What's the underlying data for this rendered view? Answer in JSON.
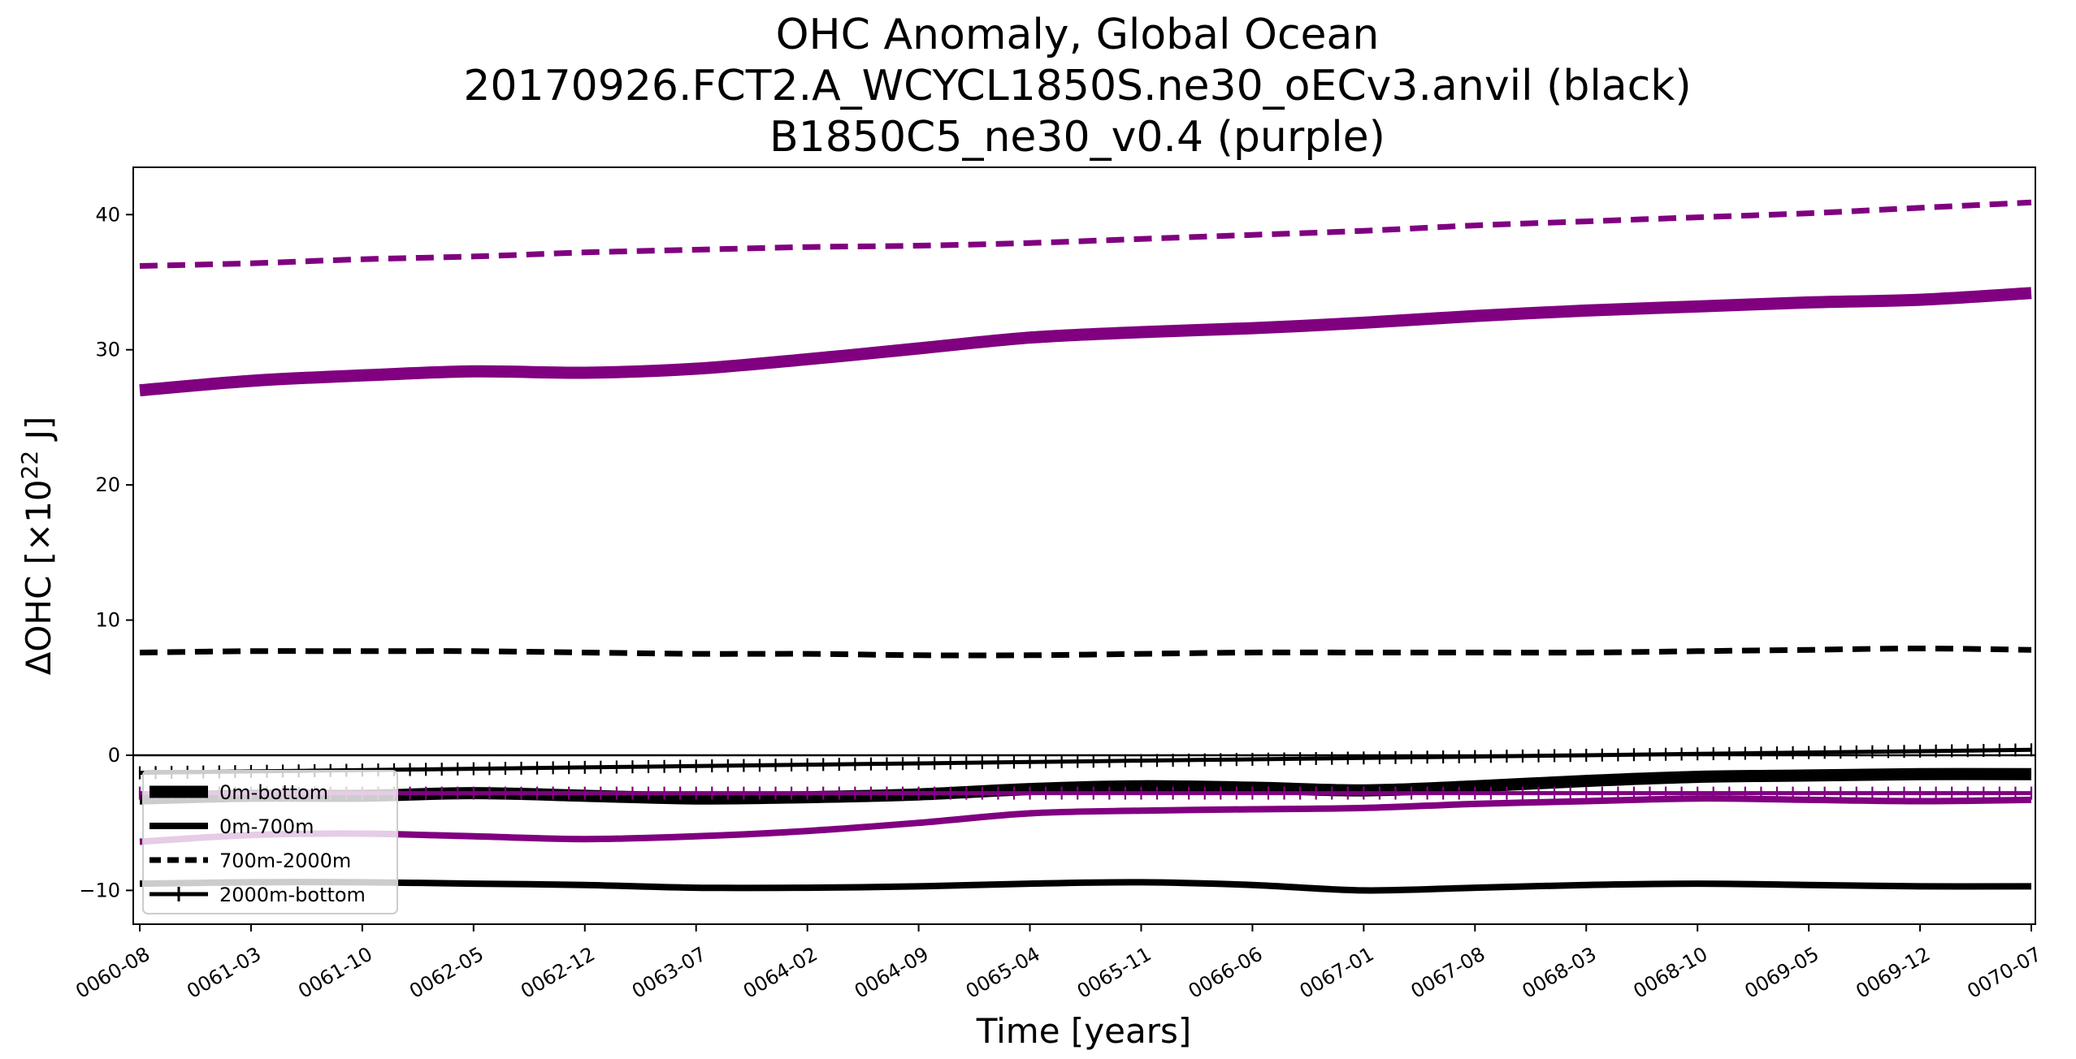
{
  "chart_data": {
    "type": "line",
    "title": [
      "OHC Anomaly, Global Ocean",
      "20170926.FCT2.A_WCYCL1850S.ne30_oECv3.anvil (black)",
      "B1850C5_ne30_v0.4 (purple)"
    ],
    "xlabel": "Time [years]",
    "ylabel_parts": {
      "prefix": "ΔOHC [×10",
      "sup": "22",
      "suffix": " J]"
    },
    "x_ticks": [
      "0060-08",
      "0061-03",
      "0061-10",
      "0062-05",
      "0062-12",
      "0063-07",
      "0064-02",
      "0064-09",
      "0065-04",
      "0065-11",
      "0066-06",
      "0067-01",
      "0067-08",
      "0068-03",
      "0068-10",
      "0069-05",
      "0069-12",
      "0070-07"
    ],
    "x_range": [
      "0060-08",
      "0070-07"
    ],
    "y_ticks": [
      -10,
      0,
      10,
      20,
      30,
      40
    ],
    "y_tick_labels": [
      "−10",
      "0",
      "10",
      "20",
      "30",
      "40"
    ],
    "ylim": [
      -12.5,
      43.5
    ],
    "zero_line": true,
    "grid": false,
    "legend_position": "lower-left",
    "legend": [
      {
        "label": "0m-bottom",
        "style": "thick"
      },
      {
        "label": "0m-700m",
        "style": "solid"
      },
      {
        "label": "700m-2000m",
        "style": "dashed"
      },
      {
        "label": "2000m-bottom",
        "style": "plus"
      }
    ],
    "colors": {
      "run1": "#000000",
      "run2": "#800080"
    },
    "series": [
      {
        "run": "black",
        "legend": "0m-bottom",
        "style": "thick",
        "color": "#000000",
        "x": [
          "0060-08",
          "0061-03",
          "0061-10",
          "0062-05",
          "0062-12",
          "0063-07",
          "0064-02",
          "0064-09",
          "0065-04",
          "0065-11",
          "0066-06",
          "0067-01",
          "0067-08",
          "0068-03",
          "0068-10",
          "0069-05",
          "0069-12",
          "0070-07"
        ],
        "y": [
          -3.2,
          -3.0,
          -3.0,
          -2.8,
          -3.0,
          -3.2,
          -3.1,
          -2.9,
          -2.5,
          -2.3,
          -2.4,
          -2.6,
          -2.3,
          -1.9,
          -1.6,
          -1.5,
          -1.4,
          -1.4
        ]
      },
      {
        "run": "black",
        "legend": "0m-700m",
        "style": "solid",
        "color": "#000000",
        "x": [
          "0060-08",
          "0061-03",
          "0061-10",
          "0062-05",
          "0062-12",
          "0063-07",
          "0064-02",
          "0064-09",
          "0065-04",
          "0065-11",
          "0066-06",
          "0067-01",
          "0067-08",
          "0068-03",
          "0068-10",
          "0069-05",
          "0069-12",
          "0070-07"
        ],
        "y": [
          -9.5,
          -9.4,
          -9.4,
          -9.5,
          -9.6,
          -9.8,
          -9.8,
          -9.7,
          -9.5,
          -9.4,
          -9.6,
          -10.0,
          -9.8,
          -9.6,
          -9.5,
          -9.6,
          -9.7,
          -9.7
        ]
      },
      {
        "run": "black",
        "legend": "700m-2000m",
        "style": "dashed",
        "color": "#000000",
        "x": [
          "0060-08",
          "0061-03",
          "0061-10",
          "0062-05",
          "0062-12",
          "0063-07",
          "0064-02",
          "0064-09",
          "0065-04",
          "0065-11",
          "0066-06",
          "0067-01",
          "0067-08",
          "0068-03",
          "0068-10",
          "0069-05",
          "0069-12",
          "0070-07"
        ],
        "y": [
          7.6,
          7.7,
          7.7,
          7.7,
          7.6,
          7.5,
          7.5,
          7.4,
          7.4,
          7.5,
          7.6,
          7.6,
          7.6,
          7.6,
          7.7,
          7.8,
          7.9,
          7.8
        ]
      },
      {
        "run": "black",
        "legend": "2000m-bottom",
        "style": "plus",
        "color": "#000000",
        "x": [
          "0060-08",
          "0061-03",
          "0061-10",
          "0062-05",
          "0062-12",
          "0063-07",
          "0064-02",
          "0064-09",
          "0065-04",
          "0065-11",
          "0066-06",
          "0067-01",
          "0067-08",
          "0068-03",
          "0068-10",
          "0069-05",
          "0069-12",
          "0070-07"
        ],
        "y": [
          -1.3,
          -1.2,
          -1.1,
          -1.0,
          -0.9,
          -0.8,
          -0.7,
          -0.6,
          -0.5,
          -0.4,
          -0.3,
          -0.2,
          -0.1,
          0.0,
          0.1,
          0.2,
          0.3,
          0.4
        ]
      },
      {
        "run": "purple",
        "legend": "0m-bottom",
        "style": "thick",
        "color": "#800080",
        "x": [
          "0060-08",
          "0061-03",
          "0061-10",
          "0062-05",
          "0062-12",
          "0063-07",
          "0064-02",
          "0064-09",
          "0065-04",
          "0065-11",
          "0066-06",
          "0067-01",
          "0067-08",
          "0068-03",
          "0068-10",
          "0069-05",
          "0069-12",
          "0070-07"
        ],
        "y": [
          27.0,
          27.7,
          28.1,
          28.4,
          28.3,
          28.6,
          29.3,
          30.1,
          30.9,
          31.3,
          31.6,
          32.0,
          32.5,
          32.9,
          33.2,
          33.5,
          33.7,
          34.2
        ]
      },
      {
        "run": "purple",
        "legend": "0m-700m",
        "style": "solid",
        "color": "#800080",
        "x": [
          "0060-08",
          "0061-03",
          "0061-10",
          "0062-05",
          "0062-12",
          "0063-07",
          "0064-02",
          "0064-09",
          "0065-04",
          "0065-11",
          "0066-06",
          "0067-01",
          "0067-08",
          "0068-03",
          "0068-10",
          "0069-05",
          "0069-12",
          "0070-07"
        ],
        "y": [
          -6.4,
          -5.9,
          -5.8,
          -6.0,
          -6.2,
          -6.0,
          -5.6,
          -5.0,
          -4.3,
          -4.1,
          -4.0,
          -3.9,
          -3.6,
          -3.4,
          -3.2,
          -3.3,
          -3.4,
          -3.3
        ]
      },
      {
        "run": "purple",
        "legend": "700m-2000m",
        "style": "dashed",
        "color": "#800080",
        "x": [
          "0060-08",
          "0061-03",
          "0061-10",
          "0062-05",
          "0062-12",
          "0063-07",
          "0064-02",
          "0064-09",
          "0065-04",
          "0065-11",
          "0066-06",
          "0067-01",
          "0067-08",
          "0068-03",
          "0068-10",
          "0069-05",
          "0069-12",
          "0070-07"
        ],
        "y": [
          36.2,
          36.4,
          36.7,
          36.9,
          37.2,
          37.4,
          37.6,
          37.7,
          37.9,
          38.2,
          38.5,
          38.8,
          39.2,
          39.5,
          39.8,
          40.1,
          40.5,
          40.9
        ]
      },
      {
        "run": "purple",
        "legend": "2000m-bottom",
        "style": "plus",
        "color": "#800080",
        "x": [
          "0060-08",
          "0061-03",
          "0061-10",
          "0062-05",
          "0062-12",
          "0063-07",
          "0064-02",
          "0064-09",
          "0065-04",
          "0065-11",
          "0066-06",
          "0067-01",
          "0067-08",
          "0068-03",
          "0068-10",
          "0069-05",
          "0069-12",
          "0070-07"
        ],
        "y": [
          -2.8,
          -2.8,
          -2.8,
          -2.8,
          -2.8,
          -2.8,
          -2.8,
          -2.8,
          -2.8,
          -2.8,
          -2.8,
          -2.8,
          -2.8,
          -2.8,
          -2.8,
          -2.8,
          -2.8,
          -2.8
        ]
      }
    ]
  }
}
